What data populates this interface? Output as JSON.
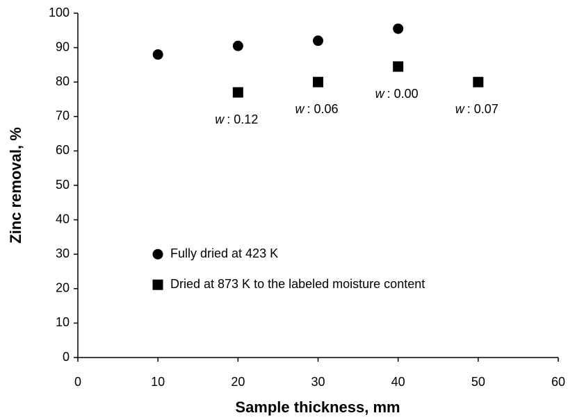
{
  "chart_data": {
    "type": "scatter",
    "x_label": "Sample thickness, mm",
    "y_label": "Zinc removal, %",
    "xlim": [
      0,
      60
    ],
    "xticks": [
      0,
      10,
      20,
      30,
      40,
      50,
      60
    ],
    "ylim": [
      0,
      100
    ],
    "yticks": [
      0,
      10,
      20,
      30,
      40,
      50,
      60,
      70,
      80,
      90,
      100
    ],
    "legend": "lower left",
    "series": [
      {
        "name": "Fully dried at 423 K",
        "marker": "circle",
        "color": "#000000",
        "x": [
          10,
          20,
          30,
          40
        ],
        "values": [
          88,
          90.5,
          92,
          95.5
        ]
      },
      {
        "name": "Dried at 873 K to the labeled moisture content",
        "marker": "square",
        "color": "#000000",
        "x": [
          20,
          30,
          40,
          50
        ],
        "values": [
          77,
          80,
          84.5,
          80
        ],
        "point_labels": [
          {
            "variable": "w",
            "text": ": 0.12"
          },
          {
            "variable": "w",
            "text": ": 0.06"
          },
          {
            "variable": "w",
            "text": ": 0.00"
          },
          {
            "variable": "w",
            "text": ": 0.07"
          }
        ]
      }
    ]
  }
}
